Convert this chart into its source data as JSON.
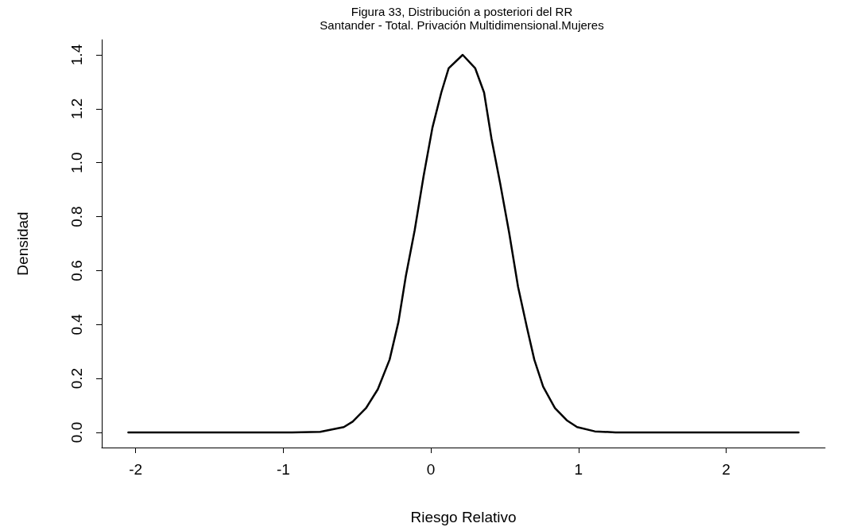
{
  "chart_data": {
    "type": "line",
    "title": "Figura 33, Distribución a posteriori del RR",
    "subtitle": "Santander - Total. Privación Multidimensional.Mujeres",
    "xlabel": "Riesgo Relativo",
    "ylabel": "Densidad",
    "x": [
      -2.05,
      -1.5,
      -0.94,
      -0.75,
      -0.59,
      -0.53,
      -0.44,
      -0.36,
      -0.28,
      -0.22,
      -0.17,
      -0.11,
      -0.05,
      0.01,
      0.07,
      0.12,
      0.215,
      0.3,
      0.36,
      0.41,
      0.47,
      0.53,
      0.59,
      0.65,
      0.7,
      0.76,
      0.84,
      0.92,
      0.99,
      1.11,
      1.25,
      1.8,
      2.49
    ],
    "series": [
      {
        "color": "#000000",
        "values": [
          0,
          0,
          0,
          0.002,
          0.02,
          0.04,
          0.09,
          0.16,
          0.27,
          0.41,
          0.58,
          0.75,
          0.95,
          1.13,
          1.26,
          1.35,
          1.4,
          1.35,
          1.26,
          1.09,
          0.92,
          0.74,
          0.54,
          0.39,
          0.27,
          0.17,
          0.09,
          0.045,
          0.02,
          0.004,
          0,
          0,
          0
        ]
      }
    ],
    "xlim": [
      -2.23,
      2.67
    ],
    "xticks": [
      -2,
      -1,
      0,
      1,
      2
    ],
    "ylim": [
      -0.056,
      1.456
    ],
    "yticks": [
      {
        "value": 0,
        "label": "0.0"
      },
      0.2,
      0.4,
      0.6,
      0.8,
      {
        "value": 1,
        "label": "1.0"
      },
      1.2,
      1.4
    ],
    "grid": false,
    "marker": "none",
    "line_style": "solid"
  }
}
